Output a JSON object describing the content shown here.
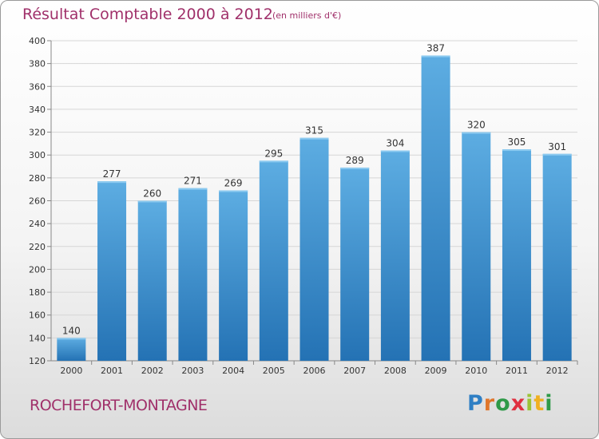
{
  "header": {
    "title": "Résultat Comptable 2000 à 2012",
    "subtitle": "(en milliers d'€)"
  },
  "footer": {
    "location": "ROCHEFORT-MONTAGNE",
    "brand_letters": [
      "P",
      "r",
      "o",
      "x",
      "i",
      "t",
      "i"
    ]
  },
  "colors": {
    "bar_top": "#5dade2",
    "bar_bottom": "#2472b4",
    "title": "#a0306a",
    "grid": "#d6d6d6"
  },
  "chart_data": {
    "type": "bar",
    "title": "Résultat Comptable 2000 à 2012",
    "unit_label": "(en milliers d'€)",
    "xlabel": "",
    "ylabel": "",
    "categories": [
      "2000",
      "2001",
      "2002",
      "2003",
      "2004",
      "2005",
      "2006",
      "2007",
      "2008",
      "2009",
      "2010",
      "2011",
      "2012"
    ],
    "values": [
      140,
      277,
      260,
      271,
      269,
      295,
      315,
      289,
      304,
      387,
      320,
      305,
      301
    ],
    "ylim": [
      120,
      400
    ],
    "yticks": [
      120,
      140,
      160,
      180,
      200,
      220,
      240,
      260,
      280,
      300,
      320,
      340,
      360,
      380,
      400
    ],
    "grid": true,
    "legend": "none"
  }
}
